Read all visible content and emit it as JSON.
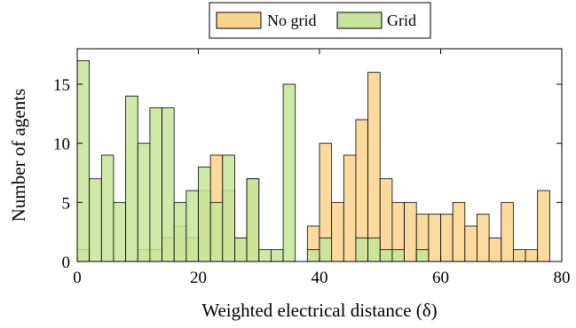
{
  "chart_data": {
    "type": "bar",
    "title": "",
    "xlabel": "Weighted electrical distance (δ)",
    "ylabel": "Number of agents",
    "xlim": [
      0,
      80
    ],
    "ylim": [
      0,
      18
    ],
    "xticks": [
      0,
      20,
      40,
      60,
      80
    ],
    "yticks": [
      0,
      5,
      10,
      15
    ],
    "grid": false,
    "legend_position": "top-center",
    "bin_width": 2,
    "bin_starts": [
      0,
      2,
      4,
      6,
      8,
      10,
      12,
      14,
      16,
      18,
      20,
      22,
      24,
      26,
      28,
      30,
      32,
      34,
      36,
      38,
      40,
      42,
      44,
      46,
      48,
      50,
      52,
      54,
      56,
      58,
      60,
      62,
      64,
      66,
      68,
      70,
      72,
      74,
      76
    ],
    "series": [
      {
        "name": "No grid",
        "color": "#fbd38d",
        "values": [
          1,
          0,
          0,
          0,
          0,
          1,
          1,
          2,
          3,
          2,
          6,
          9,
          6,
          2,
          7,
          0,
          0,
          0,
          0,
          3,
          10,
          5,
          9,
          12,
          16,
          7,
          5,
          5,
          4,
          4,
          4,
          5,
          3,
          4,
          2,
          5,
          1,
          1,
          6
        ]
      },
      {
        "name": "Grid",
        "color": "#c5e59a",
        "values": [
          17,
          7,
          9,
          5,
          14,
          10,
          13,
          13,
          5,
          6,
          8,
          5,
          9,
          2,
          7,
          1,
          1,
          15,
          0,
          1,
          2,
          0,
          0,
          2,
          2,
          1,
          1,
          0,
          1,
          0,
          0,
          0,
          0,
          0,
          0,
          0,
          0,
          0,
          0
        ]
      }
    ]
  }
}
